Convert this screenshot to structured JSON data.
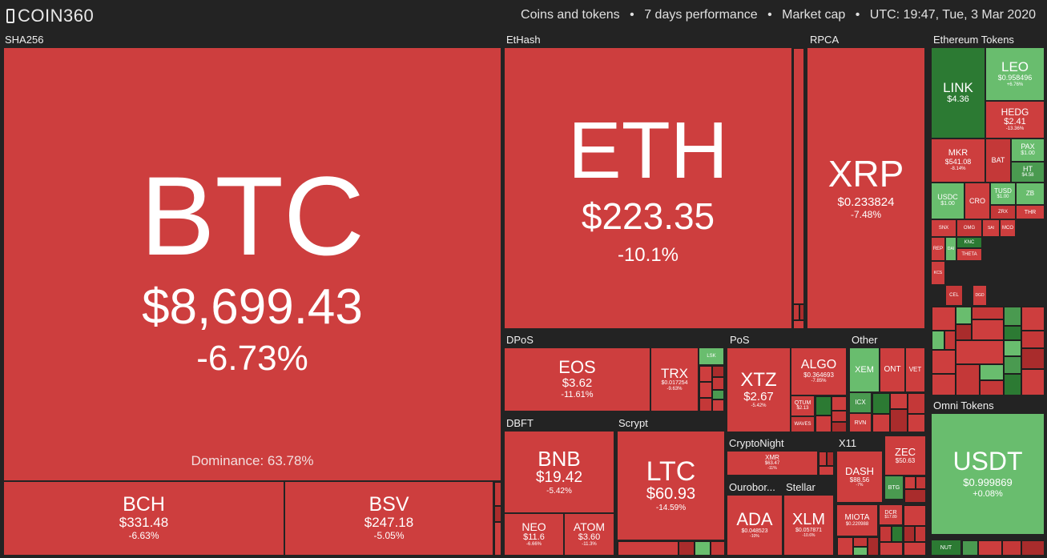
{
  "header": {
    "logo": "COIN360",
    "info": [
      "Coins and tokens",
      "7 days performance",
      "Market cap",
      "UTC: 19:47, Tue, 3 Mar 2020"
    ],
    "separator": "•"
  },
  "colors": {
    "loss": "#cd3e3e",
    "gain": "#69bd6e",
    "strong_gain": "#2c7a33",
    "background": "#232323"
  },
  "groups": {
    "sha256": "SHA256",
    "ethash": "EtHash",
    "rpca": "RPCA",
    "eth_tokens": "Ethereum Tokens",
    "dpos": "DPoS",
    "pos": "PoS",
    "other": "Other",
    "dbft": "DBFT",
    "scrypt": "Scrypt",
    "cryptonight": "CryptoNight",
    "x11": "X11",
    "ouroboros": "Ourobor...",
    "stellar": "Stellar",
    "omni": "Omni Tokens"
  },
  "coins": {
    "btc": {
      "sym": "BTC",
      "price": "$8,699.43",
      "chg": "-6.73%",
      "dominance": "Dominance: 63.78%"
    },
    "bch": {
      "sym": "BCH",
      "price": "$331.48",
      "chg": "-6.63%"
    },
    "bsv": {
      "sym": "BSV",
      "price": "$247.18",
      "chg": "-5.05%"
    },
    "eth": {
      "sym": "ETH",
      "price": "$223.35",
      "chg": "-10.1%"
    },
    "xrp": {
      "sym": "XRP",
      "price": "$0.233824",
      "chg": "-7.48%"
    },
    "eos": {
      "sym": "EOS",
      "price": "$3.62",
      "chg": "-11.61%"
    },
    "trx": {
      "sym": "TRX",
      "price": "$0.017254",
      "chg": "-9.63%"
    },
    "lsk": {
      "sym": "LSK"
    },
    "xtz": {
      "sym": "XTZ",
      "price": "$2.67",
      "chg": "-5.42%"
    },
    "algo": {
      "sym": "ALGO",
      "price": "$0.364693",
      "chg": "-7.85%"
    },
    "qtum": {
      "sym": "QTUM",
      "price": "$2.13"
    },
    "waves": {
      "sym": "WAVES"
    },
    "xem": {
      "sym": "XEM"
    },
    "ont": {
      "sym": "ONT"
    },
    "vet": {
      "sym": "VET"
    },
    "icx": {
      "sym": "ICX"
    },
    "rvn": {
      "sym": "RVN"
    },
    "bnb": {
      "sym": "BNB",
      "price": "$19.42",
      "chg": "-5.42%"
    },
    "neo": {
      "sym": "NEO",
      "price": "$11.6",
      "chg": "-6.66%"
    },
    "atom": {
      "sym": "ATOM",
      "price": "$3.60",
      "chg": "-11.3%"
    },
    "ltc": {
      "sym": "LTC",
      "price": "$60.93",
      "chg": "-14.59%"
    },
    "xmr": {
      "sym": "XMR",
      "price": "$63.47",
      "chg": "-11%"
    },
    "dash": {
      "sym": "DASH",
      "price": "$88.56",
      "chg": "-7%"
    },
    "zec": {
      "sym": "ZEC",
      "price": "$50.63"
    },
    "btg": {
      "sym": "BTG"
    },
    "dcr": {
      "sym": "DCR",
      "price": "$17.89"
    },
    "ada": {
      "sym": "ADA",
      "price": "$0.048523",
      "chg": "-10%"
    },
    "xlm": {
      "sym": "XLM",
      "price": "$0.057871",
      "chg": "-10.6%"
    },
    "miota": {
      "sym": "MIOTA",
      "price": "$0.220988"
    },
    "link": {
      "sym": "LINK",
      "price": "$4.36"
    },
    "leo": {
      "sym": "LEO",
      "price": "$0.958496",
      "chg": "+6.76%"
    },
    "hedg": {
      "sym": "HEDG",
      "price": "$2.41",
      "chg": "-13.36%"
    },
    "mkr": {
      "sym": "MKR",
      "price": "$541.08",
      "chg": "-8.14%"
    },
    "bat": {
      "sym": "BAT"
    },
    "pax": {
      "sym": "PAX",
      "price": "$1.00"
    },
    "ht": {
      "sym": "HT",
      "price": "$4.58"
    },
    "usdc": {
      "sym": "USDC",
      "price": "$1.00"
    },
    "cro": {
      "sym": "CRO"
    },
    "tusd": {
      "sym": "TUSD",
      "price": "$1.00"
    },
    "zb": {
      "sym": "ZB"
    },
    "thr": {
      "sym": "THR"
    },
    "zrx": {
      "sym": "ZRX"
    },
    "snx": {
      "sym": "SNX"
    },
    "omg": {
      "sym": "OMG"
    },
    "mco": {
      "sym": "MCO"
    },
    "knc": {
      "sym": "KNC"
    },
    "sai": {
      "sym": "SAI"
    },
    "rep": {
      "sym": "REP"
    },
    "dai": {
      "sym": "DAI"
    },
    "theta": {
      "sym": "THETA"
    },
    "kcs": {
      "sym": "KCS"
    },
    "cel": {
      "sym": "CEL"
    },
    "dgd": {
      "sym": "DGD"
    },
    "usdt": {
      "sym": "USDT",
      "price": "$0.999869",
      "chg": "+0.08%"
    },
    "nut": {
      "sym": "NUT"
    }
  }
}
